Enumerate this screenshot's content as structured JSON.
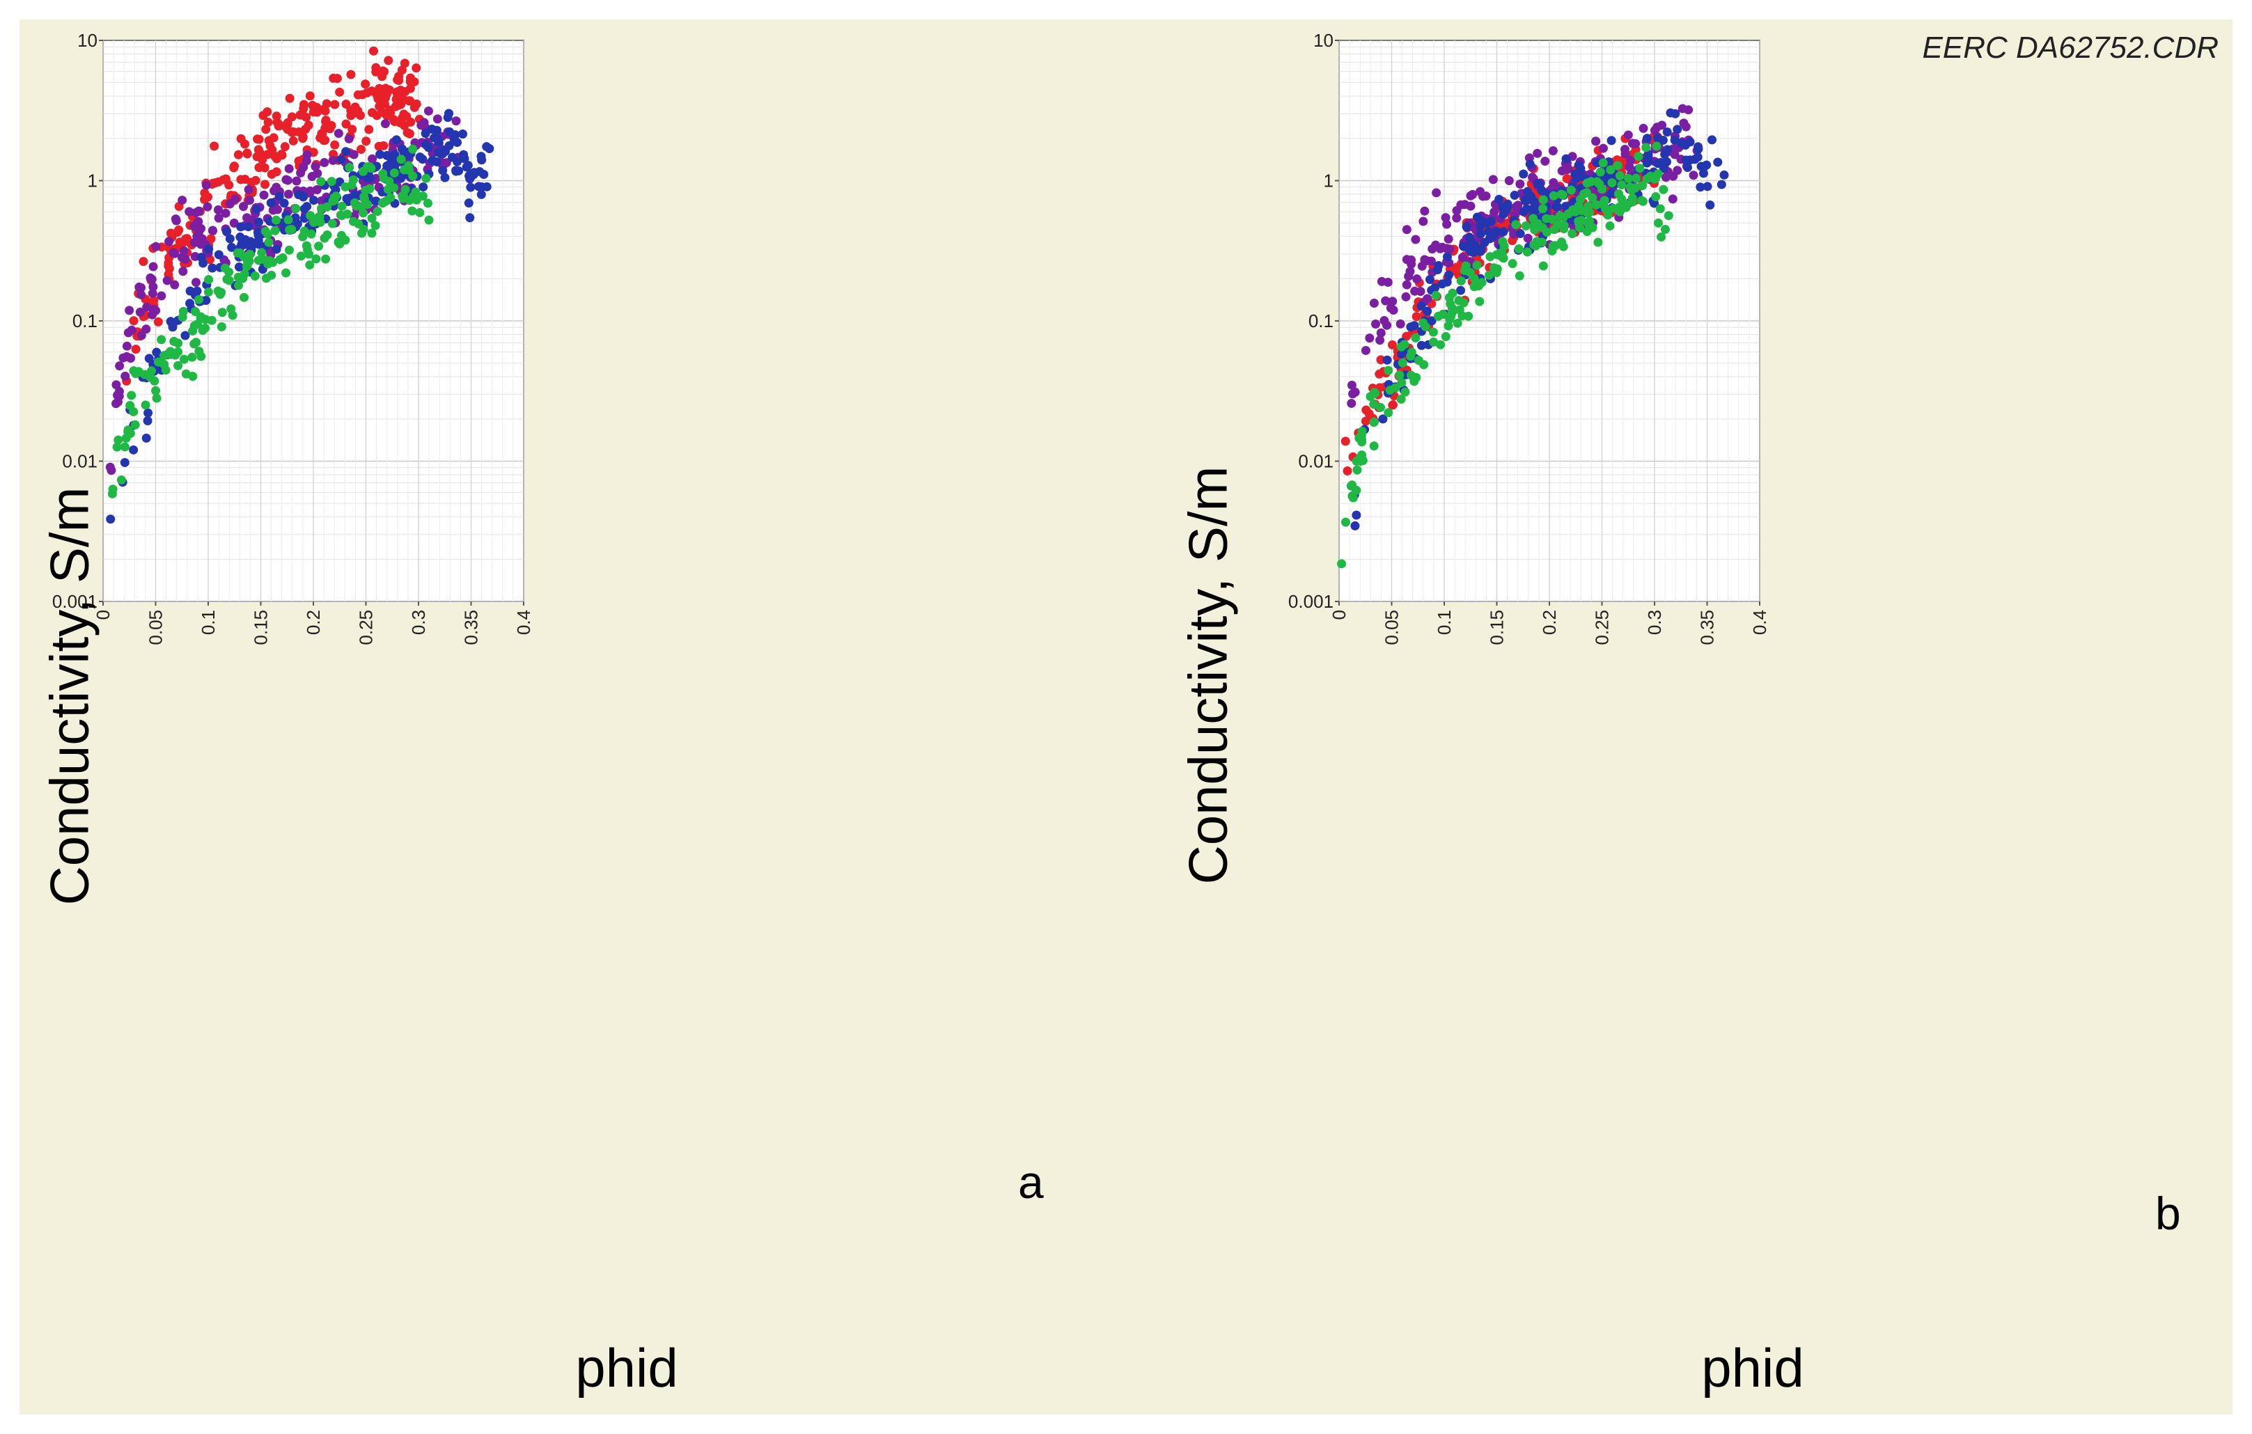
{
  "credit": "EERC DA62752.CDR",
  "colors": {
    "red": "#e8202a",
    "purple": "#7b1fa2",
    "blue": "#2336b0",
    "green": "#1fb845"
  },
  "chart_data": [
    {
      "type": "scatter",
      "panel_label": "a",
      "xlabel": "phid",
      "ylabel": "Conductivity,  S/m",
      "xlim": [
        0,
        0.4
      ],
      "ylim": [
        0.001,
        10
      ],
      "yscale": "log",
      "grid": true,
      "xticks": [
        "0",
        "0.05",
        "0.1",
        "0.15",
        "0.2",
        "0.25",
        "0.3",
        "0.35",
        "0.4"
      ],
      "yticks": [
        "10",
        "1",
        "0.1",
        "0.01",
        "0.001"
      ],
      "series": [
        {
          "name": "red",
          "color": "#e8202a",
          "band": [
            [
              0.02,
              0.035
            ],
            [
              0.03,
              0.08
            ],
            [
              0.04,
              0.12
            ],
            [
              0.05,
              0.14
            ],
            [
              0.06,
              0.25
            ],
            [
              0.08,
              0.4
            ],
            [
              0.1,
              0.65
            ],
            [
              0.12,
              0.9
            ],
            [
              0.15,
              1.5
            ],
            [
              0.17,
              2.2
            ],
            [
              0.2,
              2.5
            ],
            [
              0.22,
              3.0
            ],
            [
              0.25,
              3.3
            ],
            [
              0.27,
              3.8
            ],
            [
              0.29,
              4.2
            ],
            [
              0.3,
              4.5
            ]
          ],
          "spread": 0.3,
          "count": 260
        },
        {
          "name": "purple",
          "color": "#7b1fa2",
          "band": [
            [
              0.005,
              0.008
            ],
            [
              0.01,
              0.02
            ],
            [
              0.02,
              0.05
            ],
            [
              0.03,
              0.1
            ],
            [
              0.05,
              0.18
            ],
            [
              0.07,
              0.3
            ],
            [
              0.1,
              0.45
            ],
            [
              0.15,
              0.6
            ],
            [
              0.2,
              0.8
            ],
            [
              0.25,
              1.0
            ],
            [
              0.28,
              1.2
            ],
            [
              0.3,
              1.5
            ],
            [
              0.32,
              1.8
            ],
            [
              0.34,
              1.7
            ]
          ],
          "spread": 0.3,
          "count": 220
        },
        {
          "name": "blue",
          "color": "#2336b0",
          "band": [
            [
              0.01,
              0.003
            ],
            [
              0.02,
              0.008
            ],
            [
              0.03,
              0.015
            ],
            [
              0.05,
              0.04
            ],
            [
              0.07,
              0.08
            ],
            [
              0.1,
              0.2
            ],
            [
              0.13,
              0.35
            ],
            [
              0.15,
              0.45
            ],
            [
              0.2,
              0.7
            ],
            [
              0.25,
              0.9
            ],
            [
              0.3,
              1.3
            ],
            [
              0.32,
              2.0
            ],
            [
              0.35,
              1.1
            ],
            [
              0.37,
              1.3
            ]
          ],
          "spread": 0.25,
          "count": 220
        },
        {
          "name": "green",
          "color": "#1fb845",
          "band": [
            [
              0.003,
              0.003
            ],
            [
              0.01,
              0.007
            ],
            [
              0.03,
              0.03
            ],
            [
              0.05,
              0.05
            ],
            [
              0.08,
              0.07
            ],
            [
              0.1,
              0.12
            ],
            [
              0.13,
              0.2
            ],
            [
              0.15,
              0.3
            ],
            [
              0.2,
              0.45
            ],
            [
              0.25,
              0.7
            ],
            [
              0.3,
              1.0
            ],
            [
              0.31,
              0.7
            ]
          ],
          "spread": 0.25,
          "count": 200
        }
      ]
    },
    {
      "type": "scatter",
      "panel_label": "b",
      "xlabel": "phid",
      "ylabel": "Conductivity,  S/m",
      "xlim": [
        0,
        0.4
      ],
      "ylim": [
        0.001,
        10
      ],
      "yscale": "log",
      "grid": true,
      "xticks": [
        "0",
        "0.05",
        "0.1",
        "0.15",
        "0.2",
        "0.25",
        "0.3",
        "0.35",
        "0.4"
      ],
      "yticks": [
        "10",
        "1",
        "0.1",
        "0.01",
        "0.001"
      ],
      "series": [
        {
          "name": "red",
          "color": "#e8202a",
          "band": [
            [
              0.01,
              0.01
            ],
            [
              0.02,
              0.015
            ],
            [
              0.03,
              0.025
            ],
            [
              0.05,
              0.04
            ],
            [
              0.07,
              0.08
            ],
            [
              0.1,
              0.18
            ],
            [
              0.13,
              0.35
            ],
            [
              0.15,
              0.5
            ],
            [
              0.2,
              0.75
            ],
            [
              0.25,
              1.0
            ],
            [
              0.28,
              1.2
            ],
            [
              0.3,
              1.4
            ]
          ],
          "spread": 0.25,
          "count": 220
        },
        {
          "name": "purple",
          "color": "#7b1fa2",
          "band": [
            [
              0.005,
              0.008
            ],
            [
              0.01,
              0.02
            ],
            [
              0.02,
              0.05
            ],
            [
              0.03,
              0.1
            ],
            [
              0.05,
              0.15
            ],
            [
              0.07,
              0.25
            ],
            [
              0.1,
              0.4
            ],
            [
              0.15,
              0.6
            ],
            [
              0.2,
              0.8
            ],
            [
              0.25,
              1.0
            ],
            [
              0.28,
              1.2
            ],
            [
              0.3,
              1.5
            ],
            [
              0.32,
              1.8
            ],
            [
              0.34,
              1.7
            ]
          ],
          "spread": 0.3,
          "count": 220
        },
        {
          "name": "blue",
          "color": "#2336b0",
          "band": [
            [
              0.01,
              0.003
            ],
            [
              0.02,
              0.008
            ],
            [
              0.03,
              0.015
            ],
            [
              0.05,
              0.04
            ],
            [
              0.07,
              0.08
            ],
            [
              0.1,
              0.2
            ],
            [
              0.13,
              0.35
            ],
            [
              0.15,
              0.45
            ],
            [
              0.2,
              0.7
            ],
            [
              0.25,
              0.9
            ],
            [
              0.3,
              1.3
            ],
            [
              0.32,
              2.0
            ],
            [
              0.35,
              1.1
            ],
            [
              0.37,
              1.3
            ]
          ],
          "spread": 0.25,
          "count": 220
        },
        {
          "name": "green",
          "color": "#1fb845",
          "band": [
            [
              0.003,
              0.002
            ],
            [
              0.01,
              0.006
            ],
            [
              0.03,
              0.02
            ],
            [
              0.05,
              0.04
            ],
            [
              0.08,
              0.07
            ],
            [
              0.1,
              0.1
            ],
            [
              0.13,
              0.17
            ],
            [
              0.15,
              0.25
            ],
            [
              0.2,
              0.45
            ],
            [
              0.25,
              0.7
            ],
            [
              0.3,
              1.0
            ],
            [
              0.31,
              0.6
            ]
          ],
          "spread": 0.25,
          "count": 200
        }
      ]
    }
  ]
}
